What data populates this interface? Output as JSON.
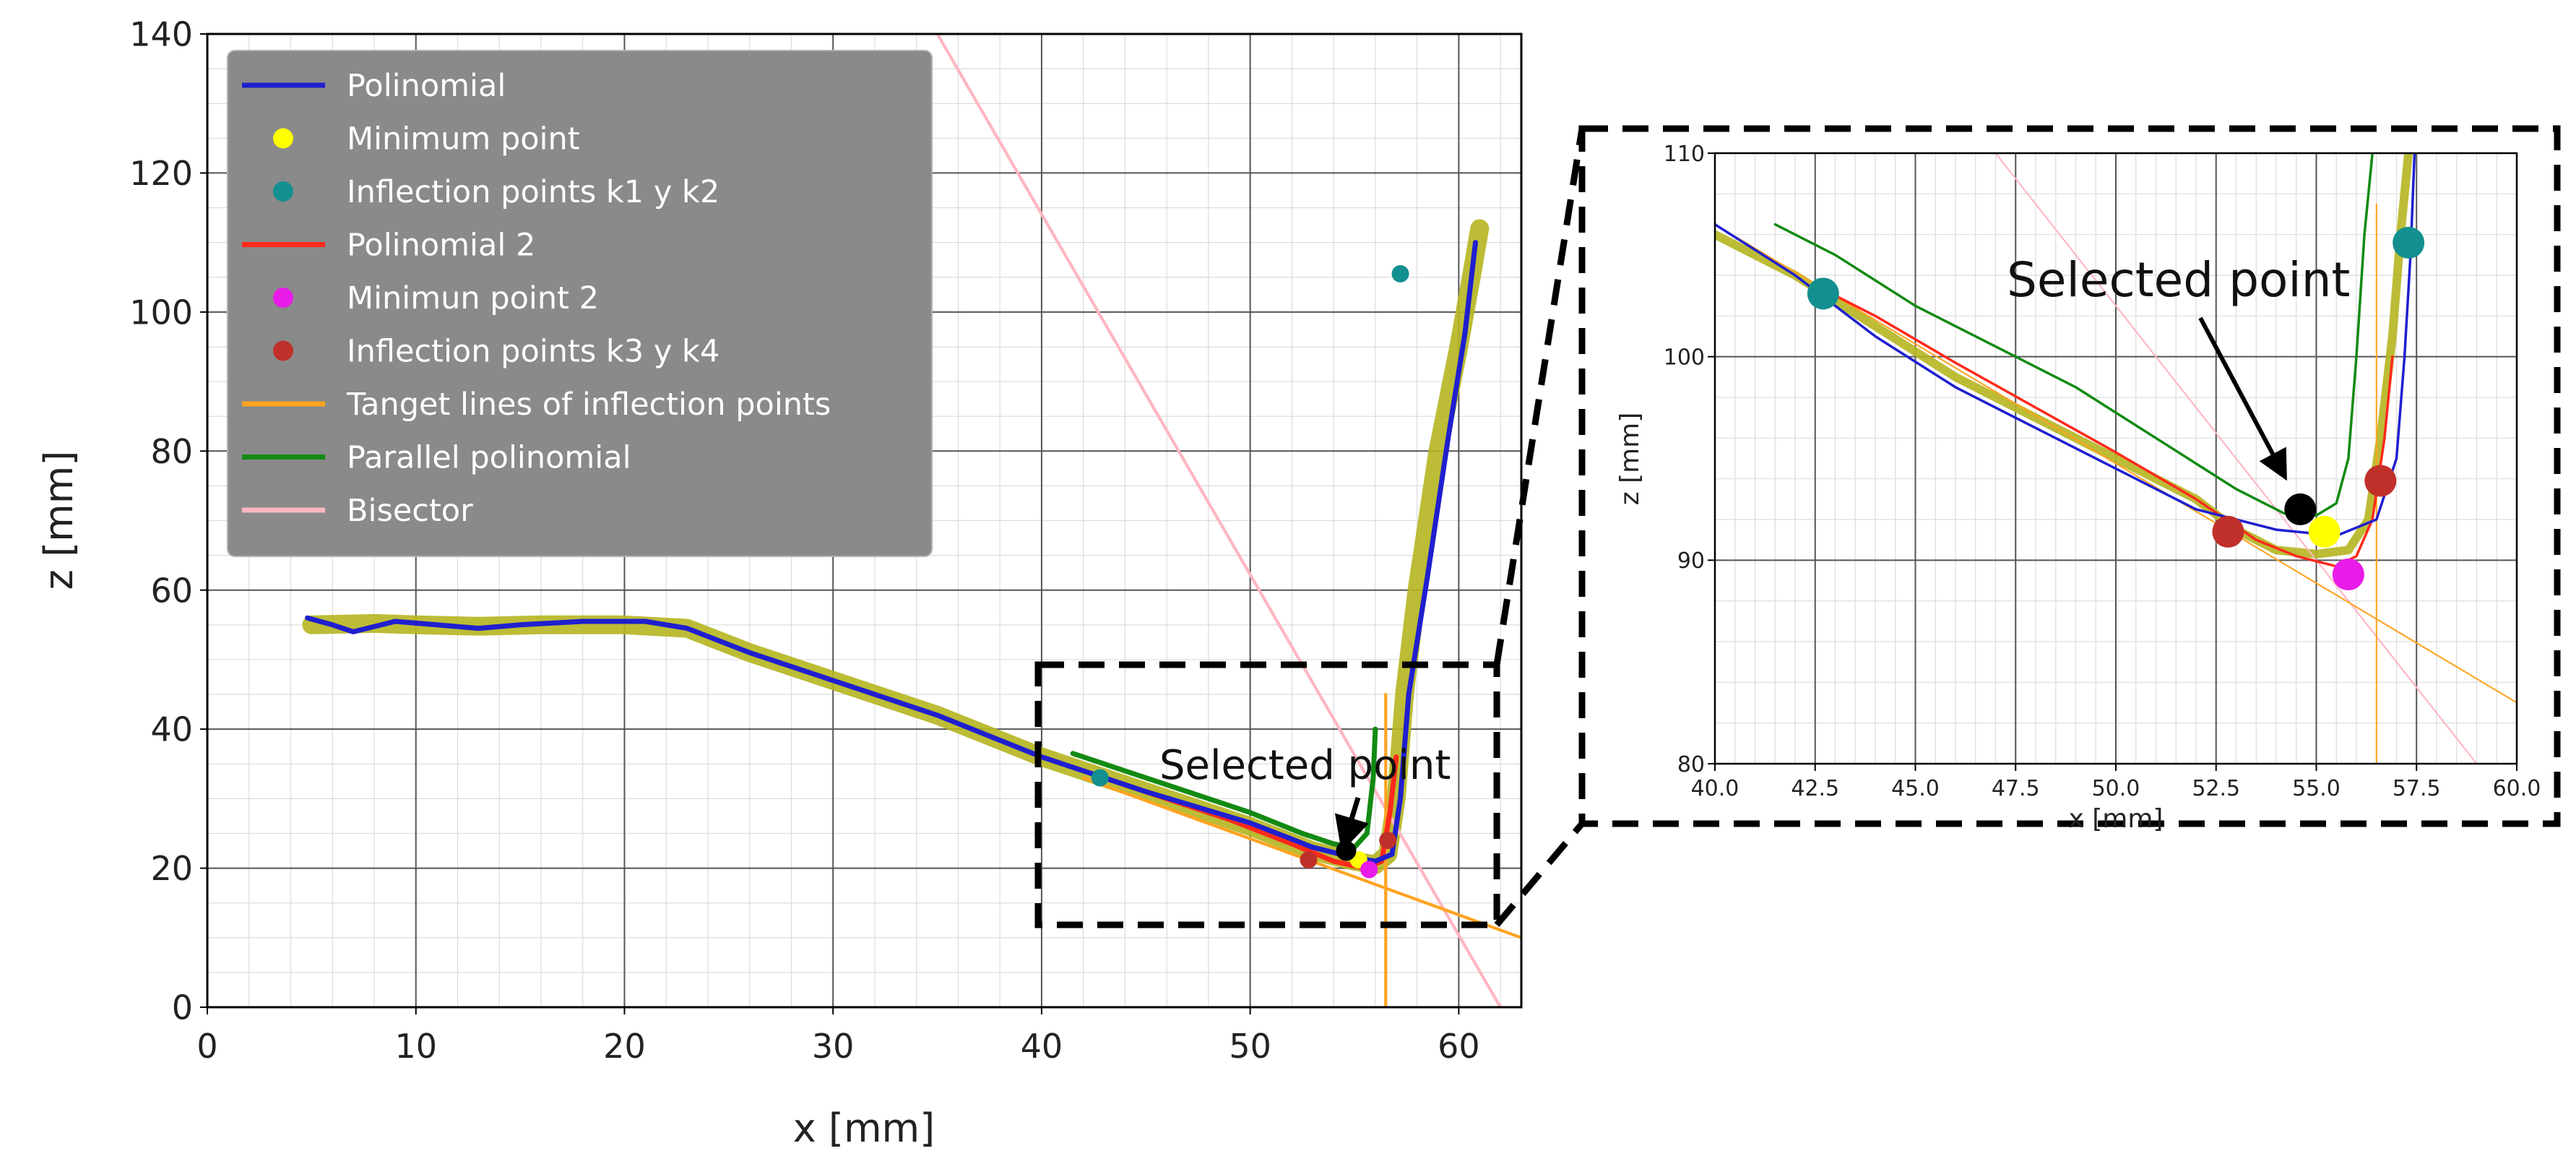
{
  "chart_data": [
    {
      "type": "line",
      "panel": "main",
      "xlabel": "x [mm]",
      "ylabel": "z [mm]",
      "xlim": [
        0,
        63
      ],
      "ylim": [
        0,
        140
      ],
      "x_ticks": [
        "0",
        "10",
        "20",
        "30",
        "40",
        "50",
        "60"
      ],
      "y_ticks": [
        "0",
        "20",
        "40",
        "60",
        "80",
        "100",
        "120",
        "140"
      ],
      "grid": "major and minor",
      "legend_position": "top-left",
      "legend": [
        {
          "label": "Polinomial",
          "marker": "line",
          "color": "#1f1fcf"
        },
        {
          "label": "Minimum point",
          "marker": "dot",
          "color": "#ffff00"
        },
        {
          "label": "Inflection points k1 y k2",
          "marker": "dot",
          "color": "#138f8f"
        },
        {
          "label": "Polinomial 2",
          "marker": "line",
          "color": "#ff2a1a"
        },
        {
          "label": "Minimun point 2",
          "marker": "dot",
          "color": "#e81be8"
        },
        {
          "label": "Inflection points k3 y k4",
          "marker": "dot",
          "color": "#c0302a"
        },
        {
          "label": "Tanget lines of inflection points",
          "marker": "line",
          "color": "#ffa320"
        },
        {
          "label": "Parallel polinomial",
          "marker": "line",
          "color": "#138a13"
        },
        {
          "label": "Bisector",
          "marker": "line",
          "color": "#ffb6c1"
        }
      ],
      "annotation": "Selected point",
      "series": [
        {
          "key": "measured",
          "color": "#b5b520",
          "x": [
            5.0,
            8.0,
            10.0,
            13.0,
            16.0,
            20.0,
            23.0,
            26.0,
            30.0,
            35.0,
            40.0,
            45.0,
            50.0,
            53.0,
            55.0,
            56.0,
            56.6,
            57.0,
            57.4,
            58.0,
            59.0,
            60.0,
            60.6,
            61.0
          ],
          "y": [
            55.0,
            55.2,
            55.0,
            54.8,
            55.0,
            55.0,
            54.5,
            51.0,
            47.0,
            42.0,
            36.0,
            31.0,
            26.0,
            22.5,
            21.0,
            20.5,
            22.0,
            30.0,
            45.0,
            60.0,
            80.0,
            95.0,
            105.0,
            112.0
          ]
        },
        {
          "key": "polinomial",
          "color": "#1f1fcf",
          "x": [
            4.8,
            6.0,
            7.0,
            9.0,
            11.0,
            13.0,
            15.0,
            18.0,
            21.0,
            23.0,
            26.0,
            30.0,
            35.0,
            40.0,
            45.0,
            50.0,
            53.0,
            55.0,
            56.0,
            56.8,
            57.2,
            57.6,
            58.5,
            59.5,
            60.3,
            60.8
          ],
          "y": [
            56.0,
            55.0,
            54.0,
            55.5,
            55.0,
            54.5,
            55.0,
            55.5,
            55.5,
            54.5,
            51.0,
            47.0,
            42.0,
            36.0,
            31.0,
            26.5,
            23.0,
            21.5,
            21.0,
            22.0,
            30.0,
            45.0,
            62.0,
            82.0,
            97.0,
            110.0
          ]
        },
        {
          "key": "polinomial_2",
          "color": "#ff2a1a",
          "x": [
            43.0,
            46.0,
            49.0,
            52.0,
            54.0,
            55.5,
            56.3,
            56.7,
            57.0
          ],
          "y": [
            33.0,
            30.0,
            27.0,
            23.5,
            21.0,
            20.0,
            21.0,
            28.0,
            36.0
          ]
        },
        {
          "key": "parallel_polinomial",
          "color": "#138a13",
          "x": [
            41.5,
            44.0,
            47.0,
            50.0,
            52.5,
            54.0,
            55.0,
            55.6,
            55.9,
            56.0
          ],
          "y": [
            36.5,
            34.0,
            31.0,
            28.0,
            25.0,
            23.5,
            23.0,
            25.0,
            33.0,
            40.0
          ]
        },
        {
          "key": "tangent_1",
          "color": "#ffa320",
          "x": [
            42.0,
            63.0
          ],
          "y": [
            33.0,
            10.0
          ]
        },
        {
          "key": "tangent_2",
          "color": "#ffa320",
          "x": [
            56.5,
            56.5
          ],
          "y": [
            0.0,
            45.0
          ]
        },
        {
          "key": "bisector",
          "color": "#ffb6c1",
          "x": [
            35.0,
            62.0
          ],
          "y": [
            140.0,
            0.0
          ]
        }
      ],
      "points": [
        {
          "key": "minimum_point",
          "x": 55.2,
          "y": 21.2,
          "color": "#ffff00"
        },
        {
          "key": "inflection_k1",
          "x": 42.8,
          "y": 33.0,
          "color": "#138f8f"
        },
        {
          "key": "inflection_k2",
          "x": 57.2,
          "y": 105.5,
          "color": "#138f8f"
        },
        {
          "key": "minimum_point_2",
          "x": 55.7,
          "y": 19.8,
          "color": "#e81be8"
        },
        {
          "key": "inflection_k3",
          "x": 52.8,
          "y": 21.2,
          "color": "#c0302a"
        },
        {
          "key": "inflection_k4",
          "x": 56.6,
          "y": 24.0,
          "color": "#c0302a"
        },
        {
          "key": "selected_point",
          "x": 54.6,
          "y": 22.5,
          "color": "#000000"
        }
      ]
    },
    {
      "type": "line",
      "panel": "zoom",
      "xlabel": "x [mm]",
      "ylabel": "z [mm]",
      "xlim": [
        40,
        60
      ],
      "ylim": [
        80,
        110
      ],
      "x_ticks": [
        "40.0",
        "42.5",
        "45.0",
        "47.5",
        "50.0",
        "52.5",
        "55.0",
        "57.5",
        "60.0"
      ],
      "y_ticks": [
        "80",
        "90",
        "100",
        "110"
      ],
      "grid": "major and minor",
      "annotation": "Selected point",
      "series": [
        {
          "key": "measured",
          "color": "#b5b520",
          "x": [
            40.0,
            42.0,
            44.0,
            46.0,
            48.0,
            50.0,
            52.0,
            53.0,
            54.0,
            55.0,
            55.8,
            56.3,
            56.6,
            56.9,
            57.1,
            57.3
          ],
          "y": [
            106.0,
            104.0,
            101.5,
            99.0,
            97.0,
            95.0,
            93.0,
            91.5,
            90.5,
            90.3,
            90.5,
            92.0,
            96.0,
            101.0,
            106.0,
            110.0
          ]
        },
        {
          "key": "polinomial",
          "color": "#1f1fcf",
          "x": [
            40.0,
            42.0,
            44.0,
            46.0,
            48.0,
            50.0,
            52.0,
            54.0,
            55.5,
            56.5,
            57.0,
            57.2,
            57.35,
            57.45
          ],
          "y": [
            106.5,
            104.0,
            101.0,
            98.5,
            96.5,
            94.5,
            92.5,
            91.5,
            91.2,
            92.0,
            95.0,
            100.0,
            105.0,
            110.0
          ]
        },
        {
          "key": "polinomial_2",
          "color": "#ff2a1a",
          "x": [
            42.5,
            44.0,
            46.0,
            48.0,
            50.0,
            52.0,
            53.5,
            54.5,
            55.5,
            56.0,
            56.4,
            56.7,
            56.9
          ],
          "y": [
            103.5,
            102.0,
            99.7,
            97.5,
            95.3,
            93.0,
            91.0,
            90.2,
            89.7,
            90.2,
            92.0,
            96.0,
            100.0
          ]
        },
        {
          "key": "parallel_polinomial",
          "color": "#138a13",
          "x": [
            41.5,
            43.0,
            45.0,
            47.0,
            49.0,
            51.0,
            53.0,
            54.2,
            55.0,
            55.5,
            55.8,
            56.0,
            56.2,
            56.4
          ],
          "y": [
            106.5,
            105.0,
            102.5,
            100.5,
            98.5,
            96.0,
            93.5,
            92.3,
            92.2,
            92.8,
            95.0,
            100.0,
            106.0,
            110.0
          ]
        },
        {
          "key": "tangent_1",
          "color": "#ffa320",
          "x": [
            40.0,
            60.0
          ],
          "y": [
            106.5,
            83.0
          ]
        },
        {
          "key": "tangent_2",
          "color": "#ffa320",
          "x": [
            56.5,
            56.5
          ],
          "y": [
            80.0,
            107.5
          ]
        },
        {
          "key": "bisector",
          "color": "#ffb6c1",
          "x": [
            47.0,
            59.0
          ],
          "y": [
            110.0,
            80.0
          ]
        }
      ],
      "points": [
        {
          "key": "minimum_point",
          "x": 55.2,
          "y": 91.4,
          "color": "#ffff00"
        },
        {
          "key": "inflection_k1",
          "x": 42.7,
          "y": 103.1,
          "color": "#138f8f"
        },
        {
          "key": "inflection_k2",
          "x": 57.3,
          "y": 105.6,
          "color": "#138f8f"
        },
        {
          "key": "minimum_point_2",
          "x": 55.8,
          "y": 89.3,
          "color": "#e81be8"
        },
        {
          "key": "inflection_k3",
          "x": 52.8,
          "y": 91.4,
          "color": "#c0302a"
        },
        {
          "key": "inflection_k4",
          "x": 56.6,
          "y": 93.9,
          "color": "#c0302a"
        },
        {
          "key": "selected_point",
          "x": 54.6,
          "y": 92.5,
          "color": "#000000"
        }
      ]
    }
  ]
}
